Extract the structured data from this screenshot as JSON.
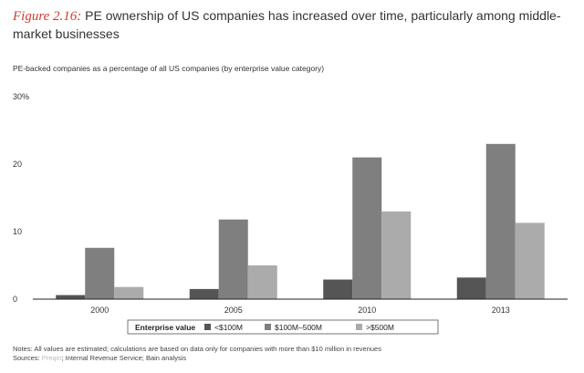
{
  "figure": {
    "label": "Figure 2.16:",
    "title": "PE ownership of US companies has increased over time, particularly among middle-market businesses"
  },
  "chart_data": {
    "type": "bar",
    "title": "PE ownership of US companies has increased over time, particularly among middle-market businesses",
    "subtitle": "PE-backed companies as a percentage of all US companies (by enterprise value category)",
    "xlabel": "",
    "ylabel": "",
    "categories": [
      "2000",
      "2005",
      "2010",
      "2013"
    ],
    "ylim": [
      0,
      30
    ],
    "yticks": [
      0,
      10,
      20,
      30
    ],
    "ytick_labels": [
      "0",
      "10",
      "20",
      "30%"
    ],
    "series": [
      {
        "name": "<$100M",
        "color": "#555555",
        "values": [
          0.6,
          1.5,
          2.9,
          3.2
        ]
      },
      {
        "name": "$100M–500M",
        "color": "#7f7f7f",
        "values": [
          7.6,
          11.8,
          21.0,
          23.0
        ]
      },
      {
        "name": ">$500M",
        "color": "#ababab",
        "values": [
          1.8,
          5.0,
          13.0,
          11.3
        ]
      }
    ],
    "legend": {
      "title": "Enterprise value",
      "position": "bottom"
    },
    "grid": false
  },
  "notes": {
    "line1": "Notes: All values are estimated; calculations are based on data only for companies with more than $10 million in revenues",
    "line2_prefix": "Sources:",
    "line2_watermark": "Preqin",
    "line2_rest": "Internal Revenue Service; Bain analysis"
  }
}
